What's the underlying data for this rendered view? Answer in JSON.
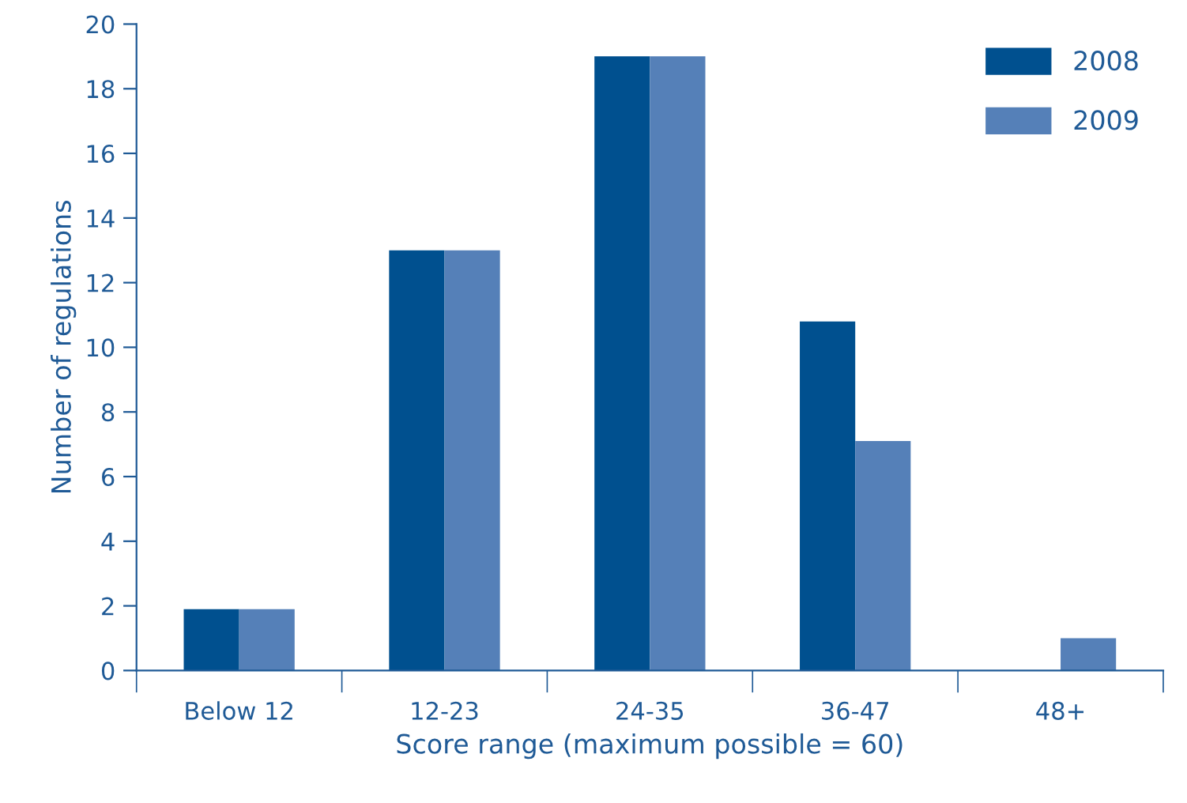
{
  "chart_data": {
    "type": "bar",
    "xlabel": "Score range (maximum possible = 60)",
    "ylabel": "Number of regulations",
    "categories": [
      "Below 12",
      "12-23",
      "24-35",
      "36-47",
      "48+"
    ],
    "series": [
      {
        "name": "2008",
        "color": "#00508f",
        "values": [
          1.9,
          13,
          19,
          10.8,
          0
        ]
      },
      {
        "name": "2009",
        "color": "#5580b8",
        "values": [
          1.9,
          13,
          19,
          7.1,
          1
        ]
      }
    ],
    "ylim": [
      0,
      20
    ],
    "yticks": [
      0,
      2,
      4,
      6,
      8,
      10,
      12,
      14,
      16,
      18,
      20
    ],
    "grid": false,
    "legend": "top right"
  }
}
